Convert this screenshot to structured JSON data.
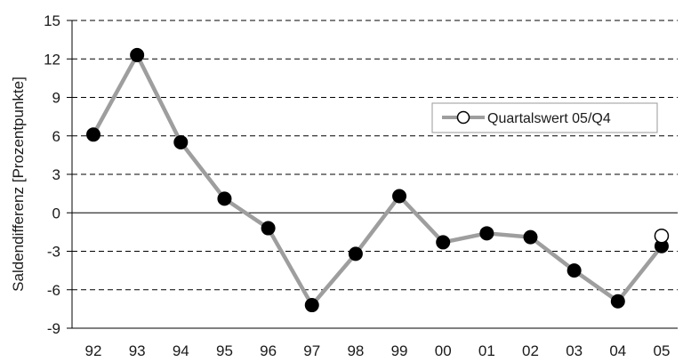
{
  "chart_data": {
    "type": "line",
    "title": "",
    "xlabel": "",
    "ylabel": "Saldendifferenz [Prozentpunkte]",
    "categories": [
      "92",
      "93",
      "94",
      "95",
      "96",
      "97",
      "98",
      "99",
      "00",
      "01",
      "02",
      "03",
      "04",
      "05"
    ],
    "ylim": [
      -9,
      15
    ],
    "yticks": [
      15,
      12,
      9,
      6,
      3,
      0,
      -3,
      -6,
      -9
    ],
    "grid": "horizontal dashed",
    "legend_position": "right",
    "series": [
      {
        "values": [
          6.1,
          12.3,
          5.5,
          1.1,
          -1.2,
          -7.2,
          -3.2,
          1.3,
          -2.3,
          -1.6,
          -1.9,
          -4.5,
          -6.9,
          -2.6
        ],
        "line_color": "#9e9e9e",
        "marker_color": "#000000"
      },
      {
        "name": "Quartalswert 05/Q4",
        "points": [
          {
            "x": "05",
            "y": -1.8
          }
        ],
        "marker_color": "#ffffff"
      }
    ]
  }
}
